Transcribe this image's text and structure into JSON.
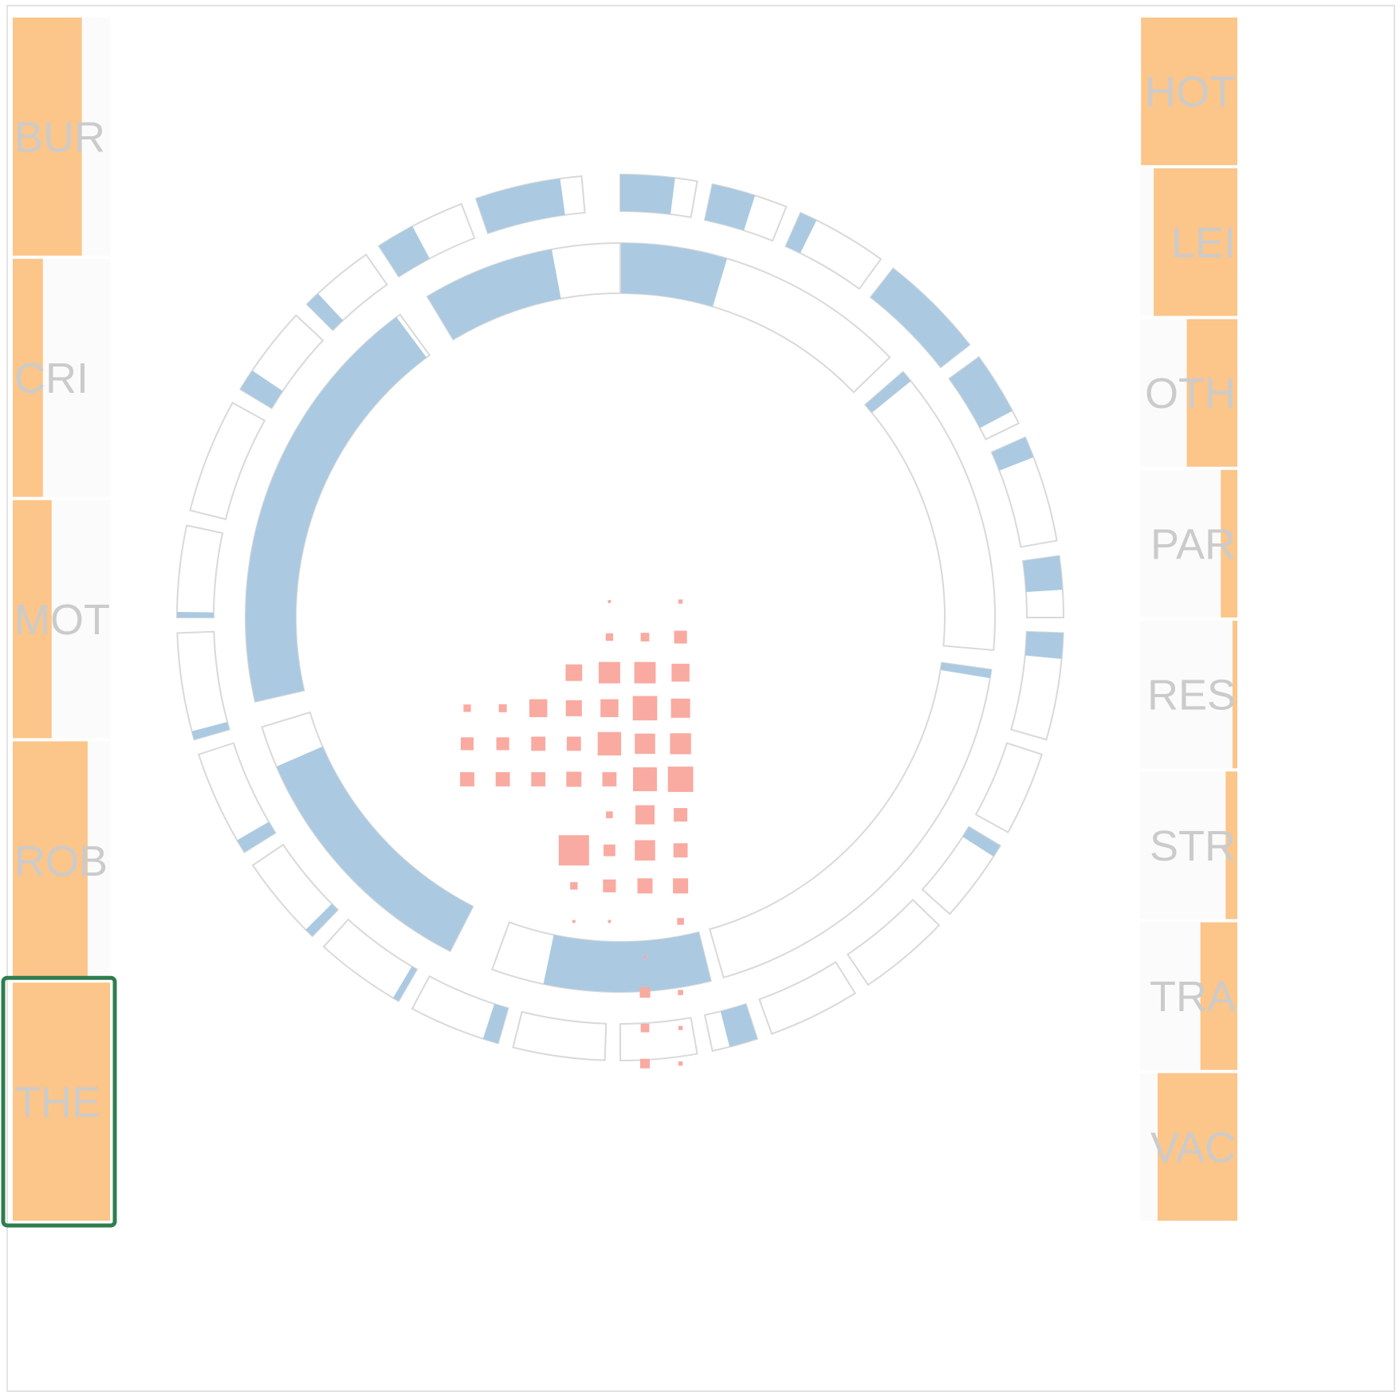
{
  "chart_data": {
    "type": "radial",
    "colors": {
      "category_bar": "#fcc589",
      "category_track": "#fbfbfb",
      "ring_fill": "#abcae1",
      "ring_outline": "#d9d9d9",
      "matrix_mark": "#f9aaa1",
      "selection": "#2e7d4f",
      "label": "#cbcbcb"
    },
    "selected_category": "THE",
    "categories_left": [
      {
        "label": "BUR",
        "value": 0.71
      },
      {
        "label": "CRI",
        "value": 0.31
      },
      {
        "label": "MOT",
        "value": 0.4
      },
      {
        "label": "ROB",
        "value": 0.77
      },
      {
        "label": "THE",
        "value": 1.0
      }
    ],
    "categories_right": [
      {
        "label": "HOT",
        "value": 0.99
      },
      {
        "label": "LEI",
        "value": 0.86
      },
      {
        "label": "OTH",
        "value": 0.52
      },
      {
        "label": "PAR",
        "value": 0.17
      },
      {
        "label": "RES",
        "value": 0.05
      },
      {
        "label": "STR",
        "value": 0.12
      },
      {
        "label": "TRA",
        "value": 0.38
      },
      {
        "label": "VAC",
        "value": 0.82
      }
    ],
    "inner_ring": [
      {
        "start": 0,
        "end": 46,
        "fill": 0.36
      },
      {
        "start": 49,
        "end": 95,
        "fill": 0.04
      },
      {
        "start": 98,
        "end": 164,
        "fill": 0.02
      },
      {
        "start": 166,
        "end": 200,
        "fill": 0.76
      },
      {
        "start": 207,
        "end": 253,
        "fill": 0.86
      },
      {
        "start": 257,
        "end": 324,
        "fill": 0.99
      },
      {
        "start": 329,
        "end": 360,
        "fill": 0.66
      }
    ],
    "outer_ring": [
      {
        "start": 0,
        "end": 10,
        "fill": 0.71
      },
      {
        "start": 12,
        "end": 22,
        "fill": 0.57
      },
      {
        "start": 24,
        "end": 36,
        "fill": 0.19
      },
      {
        "start": 38,
        "end": 52,
        "fill": 1.0
      },
      {
        "start": 54,
        "end": 64,
        "fill": 0.82
      },
      {
        "start": 66,
        "end": 80,
        "fill": 0.2
      },
      {
        "start": 82,
        "end": 90,
        "fill": 0.55
      },
      {
        "start": 92,
        "end": 106,
        "fill": 0.24
      },
      {
        "start": 108,
        "end": 119,
        "fill": 0.0
      },
      {
        "start": 121,
        "end": 132,
        "fill": 0.15
      },
      {
        "start": 134,
        "end": 146,
        "fill": 0.0
      },
      {
        "start": 148,
        "end": 160,
        "fill": 0.0
      },
      {
        "start": 162,
        "end": 168,
        "fill": 0.62
      },
      {
        "start": 170,
        "end": 180,
        "fill": 0.0
      },
      {
        "start": 182,
        "end": 194,
        "fill": 0.0
      },
      {
        "start": 196,
        "end": 208,
        "fill": 0.17
      },
      {
        "start": 210,
        "end": 222,
        "fill": 0.07
      },
      {
        "start": 224,
        "end": 236,
        "fill": 0.1
      },
      {
        "start": 238,
        "end": 252,
        "fill": 0.13
      },
      {
        "start": 254,
        "end": 268,
        "fill": 0.08
      },
      {
        "start": 270,
        "end": 282,
        "fill": 0.06
      },
      {
        "start": 284,
        "end": 299,
        "fill": 0.0
      },
      {
        "start": 301,
        "end": 313,
        "fill": 0.24
      },
      {
        "start": 315,
        "end": 325,
        "fill": 0.2
      },
      {
        "start": 327,
        "end": 339,
        "fill": 0.42
      },
      {
        "start": 341,
        "end": 355,
        "fill": 0.8
      }
    ],
    "matrix": {
      "rows": 14,
      "cols": 7,
      "cells": [
        [
          0,
          6,
          0.02
        ],
        [
          0,
          4,
          0.01
        ],
        [
          1,
          6,
          0.18
        ],
        [
          1,
          5,
          0.08
        ],
        [
          1,
          4,
          0.06
        ],
        [
          2,
          6,
          0.35
        ],
        [
          2,
          5,
          0.5
        ],
        [
          2,
          4,
          0.5
        ],
        [
          2,
          3,
          0.3
        ],
        [
          3,
          6,
          0.4
        ],
        [
          3,
          5,
          0.65
        ],
        [
          3,
          4,
          0.35
        ],
        [
          3,
          3,
          0.28
        ],
        [
          3,
          2,
          0.35
        ],
        [
          3,
          1,
          0.07
        ],
        [
          3,
          0,
          0.06
        ],
        [
          4,
          6,
          0.48
        ],
        [
          4,
          5,
          0.45
        ],
        [
          4,
          4,
          0.6
        ],
        [
          4,
          3,
          0.22
        ],
        [
          4,
          2,
          0.22
        ],
        [
          4,
          1,
          0.18
        ],
        [
          4,
          0,
          0.18
        ],
        [
          5,
          6,
          0.7
        ],
        [
          5,
          5,
          0.62
        ],
        [
          5,
          4,
          0.22
        ],
        [
          5,
          3,
          0.25
        ],
        [
          5,
          2,
          0.22
        ],
        [
          5,
          1,
          0.22
        ],
        [
          5,
          0,
          0.22
        ],
        [
          6,
          6,
          0.2
        ],
        [
          6,
          5,
          0.4
        ],
        [
          6,
          4,
          0.05
        ],
        [
          7,
          6,
          0.22
        ],
        [
          7,
          5,
          0.45
        ],
        [
          7,
          4,
          0.15
        ],
        [
          7,
          3,
          1.0
        ],
        [
          8,
          6,
          0.25
        ],
        [
          8,
          5,
          0.25
        ],
        [
          8,
          4,
          0.18
        ],
        [
          8,
          3,
          0.06
        ],
        [
          9,
          6,
          0.05
        ],
        [
          9,
          4,
          0.01
        ],
        [
          9,
          3,
          0.01
        ],
        [
          10,
          5,
          0.01
        ],
        [
          11,
          6,
          0.03
        ],
        [
          11,
          5,
          0.12
        ],
        [
          12,
          6,
          0.02
        ],
        [
          12,
          5,
          0.08
        ],
        [
          13,
          6,
          0.02
        ],
        [
          13,
          5,
          0.1
        ]
      ]
    }
  }
}
